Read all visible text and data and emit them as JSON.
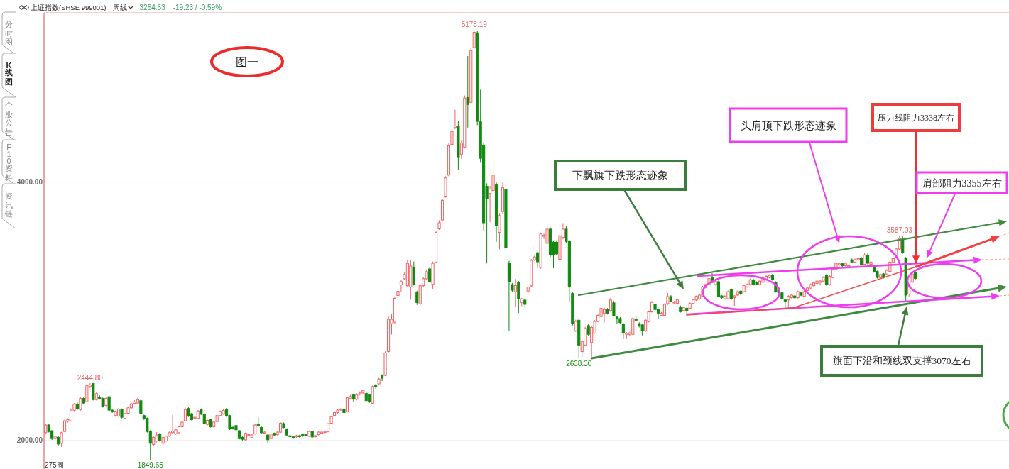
{
  "chart_data": {
    "type": "candlestick",
    "title": "上证指数(SHSE 999001)",
    "subtitle": "周线",
    "categories": [
      null,
      null,
      null,
      null,
      null,
      null,
      null,
      null,
      null,
      null,
      null,
      null,
      null,
      null,
      null,
      null,
      null,
      null,
      null,
      null,
      null,
      null,
      null,
      null,
      null,
      null,
      null,
      null,
      null,
      null,
      null,
      null,
      null,
      null,
      null,
      null,
      null,
      null,
      null,
      null,
      null,
      null,
      null,
      null,
      null,
      null,
      null,
      null,
      null,
      null,
      null,
      null,
      null,
      null,
      null,
      null,
      null,
      null,
      null,
      null,
      null,
      null,
      null,
      null,
      null,
      null,
      null,
      null,
      null,
      null,
      null,
      null,
      null,
      null,
      null,
      null,
      null,
      null,
      null,
      null,
      null,
      null,
      null,
      null,
      null,
      null,
      null,
      null,
      null,
      null,
      null,
      null,
      null,
      null,
      null,
      null,
      null,
      null,
      null,
      null,
      null,
      null,
      null,
      null,
      null,
      null,
      null,
      null,
      null,
      null,
      null,
      null,
      null,
      null,
      null,
      null,
      null,
      null,
      null,
      null,
      null,
      null,
      null,
      null,
      null,
      null,
      null,
      null,
      null,
      null,
      null,
      null,
      null,
      null,
      null,
      null,
      null,
      null,
      null,
      null,
      null,
      null,
      null,
      null,
      null,
      null,
      null,
      null,
      null,
      null,
      null,
      null,
      null,
      null,
      null,
      null,
      null,
      null,
      null,
      null,
      null,
      null,
      null,
      null,
      null,
      null,
      null,
      null,
      null,
      null,
      null,
      null,
      null,
      null,
      null,
      null,
      null,
      null,
      null,
      null,
      null,
      null,
      null,
      null,
      null,
      null,
      null,
      null,
      null,
      null,
      null,
      null,
      null,
      null,
      null,
      null,
      null,
      null,
      null,
      null,
      null,
      null,
      null,
      null,
      null,
      null,
      null,
      null,
      null,
      null,
      null,
      null,
      null,
      null,
      null,
      null,
      null,
      null,
      null,
      null,
      null,
      null,
      null,
      null,
      null,
      null,
      null,
      null,
      null,
      null,
      null,
      null,
      null,
      null,
      null,
      null,
      null,
      null,
      null,
      null,
      null,
      null,
      null,
      null,
      null,
      null,
      null,
      null,
      null,
      null,
      null,
      null,
      null,
      null,
      null,
      null,
      null,
      null,
      null,
      null,
      null,
      null,
      null,
      null,
      null,
      null,
      null,
      null,
      null,
      null,
      null,
      null,
      null,
      null,
      null,
      null,
      null,
      null,
      null,
      null,
      null,
      null,
      null,
      null,
      null,
      null,
      null,
      null,
      null,
      null,
      null,
      null,
      null,
      null,
      null,
      null,
      null,
      null,
      null,
      null,
      null,
      null,
      null,
      null
    ],
    "ohlc": [
      [
        2061,
        2130,
        2050,
        2120
      ],
      [
        2120,
        2128,
        2062,
        2070
      ],
      [
        2076,
        2080,
        2005,
        2015
      ],
      [
        2015,
        2040,
        2008,
        2034
      ],
      [
        2025,
        2035,
        1960,
        1973
      ],
      [
        1979,
        2068,
        1951,
        2061
      ],
      [
        2070,
        2160,
        2063,
        2153
      ],
      [
        2149,
        2172,
        2140,
        2162
      ],
      [
        2153,
        2240,
        2148,
        2235
      ],
      [
        2235,
        2290,
        2228,
        2281
      ],
      [
        2281,
        2295,
        2238,
        2244
      ],
      [
        2240,
        2335,
        2232,
        2326
      ],
      [
        2326,
        2340,
        2282,
        2290
      ],
      [
        2299,
        2432,
        2292,
        2427
      ],
      [
        2418,
        2444.8,
        2405,
        2430
      ],
      [
        2442,
        2443,
        2310,
        2317
      ],
      [
        2317,
        2372,
        2310,
        2363
      ],
      [
        2336,
        2350,
        2318,
        2325
      ],
      [
        2326,
        2332,
        2255,
        2262
      ],
      [
        2272,
        2334,
        2265,
        2326
      ],
      [
        2339,
        2345,
        2228,
        2235
      ],
      [
        2235,
        2240,
        2215,
        2226
      ],
      [
        2193,
        2232,
        2185,
        2226
      ],
      [
        2189,
        2250,
        2182,
        2244
      ],
      [
        2240,
        2248,
        2172,
        2180
      ],
      [
        2171,
        2215,
        2163,
        2207
      ],
      [
        2211,
        2260,
        2205,
        2253
      ],
      [
        2253,
        2292,
        2246,
        2284
      ],
      [
        2288,
        2312,
        2280,
        2299
      ],
      [
        2290,
        2330,
        2284,
        2317
      ],
      [
        2308,
        2320,
        2205,
        2211
      ],
      [
        2193,
        2200,
        2160,
        2167
      ],
      [
        2171,
        2178,
        2062,
        2070
      ],
      [
        2070,
        2080,
        1849.65,
        1979
      ],
      [
        1970,
        2035,
        1955,
        2025
      ],
      [
        1997,
        2065,
        1985,
        2043
      ],
      [
        2046,
        2060,
        1990,
        1997
      ],
      [
        1979,
        2030,
        1968,
        2025
      ],
      [
        1997,
        2040,
        1990,
        2034
      ],
      [
        2034,
        2070,
        2028,
        2061
      ],
      [
        2061,
        2198,
        2055,
        2074
      ],
      [
        2052,
        2090,
        2045,
        2083
      ],
      [
        2061,
        2115,
        2055,
        2107
      ],
      [
        2107,
        2150,
        2100,
        2143
      ],
      [
        2153,
        2255,
        2148,
        2240
      ],
      [
        2248,
        2258,
        2182,
        2189
      ],
      [
        2207,
        2215,
        2155,
        2162
      ],
      [
        2171,
        2188,
        2165,
        2180
      ],
      [
        2171,
        2236,
        2165,
        2229
      ],
      [
        2240,
        2248,
        2198,
        2204
      ],
      [
        2204,
        2210,
        2128,
        2134
      ],
      [
        2125,
        2162,
        2118,
        2156
      ],
      [
        2162,
        2168,
        2100,
        2107
      ],
      [
        2107,
        2150,
        2100,
        2143
      ],
      [
        2147,
        2200,
        2140,
        2193
      ],
      [
        2193,
        2232,
        2186,
        2226
      ],
      [
        2207,
        2245,
        2200,
        2233
      ],
      [
        2244,
        2252,
        2182,
        2189
      ],
      [
        2193,
        2198,
        2082,
        2089
      ],
      [
        2101,
        2110,
        2085,
        2094
      ],
      [
        2116,
        2122,
        2075,
        2083
      ],
      [
        2076,
        2082,
        2008,
        2015
      ],
      [
        2025,
        2032,
        2000,
        2010
      ],
      [
        2006,
        2062,
        1998,
        2056
      ],
      [
        2039,
        2055,
        2032,
        2046
      ],
      [
        2025,
        2050,
        2018,
        2043
      ],
      [
        2052,
        2128,
        2045,
        2120
      ],
      [
        2125,
        2180,
        2108,
        2116
      ],
      [
        2101,
        2108,
        2055,
        2061
      ],
      [
        2057,
        2072,
        2050,
        2065
      ],
      [
        2043,
        2050,
        1979,
        2006
      ],
      [
        2015,
        2058,
        2008,
        2052
      ],
      [
        2056,
        2062,
        2035,
        2043
      ],
      [
        2046,
        2072,
        2040,
        2065
      ],
      [
        2065,
        2142,
        2058,
        2134
      ],
      [
        2131,
        2140,
        2095,
        2101
      ],
      [
        2089,
        2095,
        2036,
        2043
      ],
      [
        2037,
        2045,
        2020,
        2030
      ],
      [
        2028,
        2035,
        2012,
        2021
      ],
      [
        2030,
        2045,
        2022,
        2037
      ],
      [
        2037,
        2045,
        2022,
        2030
      ],
      [
        2046,
        2052,
        2030,
        2039
      ],
      [
        2046,
        2054,
        2032,
        2039
      ],
      [
        2034,
        2078,
        2028,
        2070
      ],
      [
        2070,
        2076,
        2020,
        2028
      ],
      [
        2030,
        2044,
        2024,
        2037
      ],
      [
        2046,
        2070,
        2040,
        2065
      ],
      [
        2057,
        2072,
        2050,
        2065
      ],
      [
        2063,
        2076,
        2057,
        2070
      ],
      [
        2070,
        2135,
        2064,
        2129
      ],
      [
        2134,
        2192,
        2128,
        2185
      ],
      [
        2193,
        2226,
        2186,
        2217
      ],
      [
        2217,
        2242,
        2210,
        2235
      ],
      [
        2237,
        2250,
        2230,
        2244
      ],
      [
        2244,
        2252,
        2189,
        2217
      ],
      [
        2223,
        2340,
        2215,
        2331
      ],
      [
        2328,
        2352,
        2318,
        2340
      ],
      [
        2353,
        2362,
        2300,
        2320
      ],
      [
        2320,
        2365,
        2310,
        2353
      ],
      [
        2360,
        2380,
        2350,
        2368
      ],
      [
        2368,
        2392,
        2360,
        2385
      ],
      [
        2364,
        2372,
        2300,
        2309
      ],
      [
        2353,
        2360,
        2290,
        2299
      ],
      [
        2288,
        2425,
        2280,
        2418
      ],
      [
        2429,
        2440,
        2400,
        2418
      ],
      [
        2439,
        2485,
        2432,
        2476
      ],
      [
        2504,
        2512,
        2460,
        2483
      ],
      [
        2504,
        2690,
        2498,
        2678
      ],
      [
        2689,
        2960,
        2680,
        2938
      ],
      [
        2905,
        2980,
        2820,
        2938
      ],
      [
        2916,
        3110,
        2905,
        3100
      ],
      [
        3122,
        3170,
        3100,
        3155
      ],
      [
        3204,
        3240,
        3150,
        3230
      ],
      [
        3252,
        3300,
        3245,
        3285
      ],
      [
        3198,
        3400,
        3190,
        3371
      ],
      [
        3187,
        3400,
        3089,
        3350
      ],
      [
        3339,
        3385,
        3200,
        3209
      ],
      [
        3144,
        3160,
        3050,
        3068
      ],
      [
        3057,
        3210,
        3045,
        3198
      ],
      [
        3198,
        3262,
        3190,
        3252
      ],
      [
        3252,
        3320,
        3245,
        3306
      ],
      [
        3328,
        3340,
        3222,
        3230
      ],
      [
        3209,
        3385,
        3170,
        3371
      ],
      [
        3382,
        3620,
        3375,
        3610
      ],
      [
        3638,
        3705,
        3630,
        3685
      ],
      [
        3707,
        3870,
        3700,
        3859
      ],
      [
        3891,
        4045,
        3880,
        4032
      ],
      [
        4054,
        4300,
        4045,
        4281
      ],
      [
        4292,
        4400,
        4270,
        4390
      ],
      [
        4422,
        4560,
        4410,
        4433
      ],
      [
        4433,
        4470,
        4097,
        4195
      ],
      [
        4216,
        4320,
        4180,
        4303
      ],
      [
        4271,
        4670,
        4260,
        4650
      ],
      [
        4654,
        4975,
        4422,
        4600
      ],
      [
        4617,
        5040,
        4600,
        5018
      ],
      [
        5040,
        5178.19,
        5020,
        5159
      ],
      [
        5155,
        5170,
        4440,
        4470
      ],
      [
        4466,
        4715,
        4150,
        4184
      ],
      [
        4281,
        4300,
        3620,
        3685
      ],
      [
        3967,
        3990,
        3371,
        3870
      ],
      [
        3913,
        3970,
        3690,
        3945
      ],
      [
        3935,
        4173,
        3920,
        4054
      ],
      [
        3978,
        4000,
        3538,
        3664
      ],
      [
        3610,
        3760,
        3480,
        3740
      ],
      [
        3772,
        4000,
        3750,
        3956
      ],
      [
        3941,
        3990,
        3480,
        3495
      ],
      [
        3371,
        3390,
        2851,
        3230
      ],
      [
        3206,
        3220,
        3150,
        3164
      ],
      [
        3151,
        3250,
        3030,
        3200
      ],
      [
        3224,
        3235,
        2986,
        3096
      ],
      [
        3069,
        3105,
        3040,
        3096
      ],
      [
        3087,
        3100,
        3032,
        3054
      ],
      [
        3157,
        3195,
        3140,
        3188
      ],
      [
        3197,
        3405,
        3190,
        3394
      ],
      [
        3398,
        3430,
        3390,
        3420
      ],
      [
        3453,
        3460,
        3334,
        3383
      ],
      [
        3340,
        3610,
        3330,
        3599
      ],
      [
        3581,
        3600,
        3560,
        3590
      ],
      [
        3526,
        3676,
        3515,
        3636
      ],
      [
        3636,
        3650,
        3420,
        3438
      ],
      [
        3535,
        3545,
        3334,
        3435
      ],
      [
        3535,
        3550,
        3435,
        3444
      ],
      [
        3402,
        3595,
        3390,
        3585
      ],
      [
        3572,
        3682,
        3560,
        3636
      ],
      [
        3636,
        3660,
        3530,
        3541
      ],
      [
        3541,
        3550,
        3069,
        3188
      ],
      [
        3138,
        3150,
        2890,
        2904
      ],
      [
        2849,
        2935,
        2840,
        2922
      ],
      [
        2931,
        2945,
        2638.3,
        2739
      ],
      [
        2688,
        2780,
        2645,
        2767
      ],
      [
        2739,
        2880,
        2730,
        2867
      ],
      [
        2889,
        2900,
        2810,
        2822
      ],
      [
        2758,
        2885,
        2648,
        2876
      ],
      [
        2831,
        2932,
        2825,
        2922
      ],
      [
        2922,
        2980,
        2915,
        2968
      ],
      [
        2959,
        3035,
        2950,
        3023
      ],
      [
        2986,
        3030,
        2913,
        3014
      ],
      [
        3014,
        3025,
        2975,
        2986
      ],
      [
        3005,
        3105,
        2995,
        3087
      ],
      [
        3065,
        3080,
        2960,
        2968
      ],
      [
        2955,
        2965,
        2904,
        2941
      ],
      [
        2944,
        2955,
        2905,
        2913
      ],
      [
        2900,
        2910,
        2785,
        2831
      ],
      [
        2822,
        2840,
        2785,
        2831
      ],
      [
        2822,
        2842,
        2810,
        2833
      ],
      [
        2822,
        2955,
        2815,
        2944
      ],
      [
        2941,
        2960,
        2920,
        2931
      ],
      [
        2904,
        2915,
        2875,
        2886
      ],
      [
        2895,
        2905,
        2813,
        2849
      ],
      [
        2849,
        2940,
        2840,
        2931
      ],
      [
        2922,
        3005,
        2915,
        2996
      ],
      [
        2996,
        3080,
        2990,
        3069
      ],
      [
        3054,
        3065,
        3005,
        3014
      ],
      [
        3014,
        3022,
        2941,
        2986
      ],
      [
        2968,
        2995,
        2960,
        2986
      ],
      [
        2968,
        3062,
        2960,
        3054
      ],
      [
        3060,
        3142,
        3050,
        3114
      ],
      [
        3114,
        3125,
        3070,
        3078
      ],
      [
        3065,
        3080,
        3060,
        3072
      ],
      [
        3061,
        3095,
        3050,
        3088
      ],
      [
        3033,
        3045,
        2990,
        2997
      ],
      [
        3006,
        3035,
        2998,
        3028
      ],
      [
        3024,
        3030,
        2965,
        3006
      ],
      [
        3024,
        3068,
        3018,
        3061
      ],
      [
        3061,
        3095,
        3055,
        3088
      ],
      [
        3088,
        3122,
        3080,
        3116
      ],
      [
        3097,
        3132,
        3090,
        3125
      ],
      [
        3116,
        3196,
        3110,
        3189
      ],
      [
        3185,
        3214,
        3178,
        3207
      ],
      [
        3207,
        3260,
        3200,
        3253
      ],
      [
        3262,
        3295,
        3218,
        3225
      ],
      [
        3207,
        3242,
        3200,
        3234
      ],
      [
        3229,
        3238,
        3108,
        3116
      ],
      [
        3119,
        3126,
        3098,
        3106
      ],
      [
        3097,
        3124,
        3090,
        3116
      ],
      [
        3097,
        3160,
        3090,
        3152
      ],
      [
        3170,
        3178,
        3088,
        3097
      ],
      [
        3106,
        3126,
        3042,
        3119
      ],
      [
        3125,
        3160,
        3118,
        3152
      ],
      [
        3156,
        3164,
        3126,
        3134
      ],
      [
        3152,
        3206,
        3145,
        3198
      ],
      [
        3189,
        3215,
        3182,
        3207
      ],
      [
        3207,
        3252,
        3200,
        3244
      ],
      [
        3240,
        3250,
        3200,
        3207
      ],
      [
        3225,
        3232,
        3205,
        3211
      ],
      [
        3207,
        3242,
        3200,
        3234
      ],
      [
        3225,
        3260,
        3218,
        3253
      ],
      [
        3244,
        3278,
        3238,
        3271
      ],
      [
        3262,
        3285,
        3255,
        3277
      ],
      [
        3277,
        3289,
        3236,
        3244
      ],
      [
        3225,
        3232,
        3145,
        3152
      ],
      [
        3161,
        3168,
        3135,
        3143
      ],
      [
        3143,
        3150,
        3090,
        3097
      ],
      [
        3088,
        3095,
        3024,
        3079
      ],
      [
        3088,
        3124,
        3024,
        3116
      ],
      [
        3106,
        3132,
        3098,
        3125
      ],
      [
        3119,
        3126,
        3098,
        3105
      ],
      [
        3106,
        3160,
        3098,
        3152
      ],
      [
        3143,
        3150,
        3118,
        3125
      ],
      [
        3116,
        3160,
        3108,
        3152
      ],
      [
        3161,
        3188,
        3154,
        3180
      ],
      [
        3180,
        3214,
        3172,
        3207
      ],
      [
        3198,
        3228,
        3190,
        3220
      ],
      [
        3216,
        3242,
        3208,
        3234
      ],
      [
        3225,
        3242,
        3200,
        3234
      ],
      [
        3234,
        3270,
        3226,
        3262
      ],
      [
        3277,
        3288,
        3198,
        3207
      ],
      [
        3207,
        3280,
        3200,
        3271
      ],
      [
        3262,
        3334,
        3255,
        3326
      ],
      [
        3326,
        3380,
        3318,
        3372
      ],
      [
        3357,
        3378,
        3350,
        3368
      ],
      [
        3368,
        3375,
        3345,
        3353
      ],
      [
        3353,
        3380,
        3345,
        3372
      ],
      [
        3344,
        3362,
        3336,
        3353
      ],
      [
        3399,
        3408,
        3372,
        3381
      ],
      [
        3381,
        3408,
        3374,
        3399
      ],
      [
        3399,
        3418,
        3392,
        3408
      ],
      [
        3412,
        3420,
        3355,
        3363
      ],
      [
        3363,
        3454,
        3355,
        3436
      ],
      [
        3436,
        3450,
        3362,
        3372
      ],
      [
        3363,
        3390,
        3355,
        3381
      ],
      [
        3339,
        3348,
        3300,
        3308
      ],
      [
        3308,
        3315,
        3254,
        3262
      ],
      [
        3262,
        3292,
        3255,
        3284
      ],
      [
        3289,
        3296,
        3254,
        3262
      ],
      [
        3289,
        3325,
        3282,
        3317
      ],
      [
        3308,
        3390,
        3300,
        3381
      ],
      [
        3381,
        3416,
        3374,
        3408
      ],
      [
        3417,
        3490,
        3410,
        3482
      ],
      [
        3482,
        3587.03,
        3475,
        3564
      ],
      [
        3555,
        3580,
        3445,
        3454
      ],
      [
        3408,
        3420,
        3079,
        3125
      ],
      [
        3134,
        3215,
        3116,
        3207
      ],
      [
        3225,
        3298,
        3218,
        3289
      ],
      [
        3302,
        3310,
        3245,
        3254.53
      ],
      null,
      null,
      null,
      null,
      null,
      null,
      null,
      null,
      null,
      null,
      null,
      null,
      null,
      null,
      null,
      null,
      null,
      null,
      null,
      null,
      null,
      null,
      null,
      null,
      null,
      null,
      null,
      null,
      null
    ],
    "colors": [
      "#f06262",
      "#0f8a0f",
      "#0f8a0f",
      "#f06262",
      "#0f8a0f",
      "#f06262",
      "#f06262",
      "#f06262",
      "#f06262",
      "#f06262",
      "#0f8a0f",
      "#f06262",
      "#0f8a0f",
      "#f06262",
      "#f06262",
      "#0f8a0f",
      "#f06262",
      "#0f8a0f",
      "#0f8a0f",
      "#f06262",
      "#0f8a0f",
      "#0f8a0f",
      "#f06262",
      "#f06262",
      "#0f8a0f",
      "#f06262",
      "#f06262",
      "#f06262",
      "#f06262",
      "#f06262",
      "#0f8a0f",
      "#0f8a0f",
      "#0f8a0f",
      "#0f8a0f",
      "#f06262",
      "#f06262",
      "#0f8a0f",
      "#f06262",
      "#f06262",
      "#f06262",
      "#f06262",
      "#f06262",
      "#f06262",
      "#f06262",
      "#f06262",
      "#0f8a0f",
      "#0f8a0f",
      "#f06262",
      "#f06262",
      "#0f8a0f",
      "#0f8a0f",
      "#f06262",
      "#0f8a0f",
      "#f06262",
      "#f06262",
      "#f06262",
      "#f06262",
      "#0f8a0f",
      "#0f8a0f",
      "#0f8a0f",
      "#0f8a0f",
      "#0f8a0f",
      "#0f8a0f",
      "#f06262",
      "#f06262",
      "#f06262",
      "#f06262",
      "#0f8a0f",
      "#0f8a0f",
      "#f06262",
      "#0f8a0f",
      "#f06262",
      "#0f8a0f",
      "#f06262",
      "#f06262",
      "#0f8a0f",
      "#0f8a0f",
      "#0f8a0f",
      "#0f8a0f",
      "#f06262",
      "#0f8a0f",
      "#0f8a0f",
      "#0f8a0f",
      "#f06262",
      "#0f8a0f",
      "#f06262",
      "#f06262",
      "#f06262",
      "#f06262",
      "#f06262",
      "#f06262",
      "#f06262",
      "#f06262",
      "#f06262",
      "#0f8a0f",
      "#f06262",
      "#f06262",
      "#0f8a0f",
      "#f06262",
      "#f06262",
      "#f06262",
      "#0f8a0f",
      "#0f8a0f",
      "#f06262",
      "#0f8a0f",
      "#f06262",
      "#0f8a0f",
      "#f06262",
      "#f06262",
      "#f06262",
      "#f06262",
      "#f06262",
      "#f06262",
      "#f06262",
      "#f06262",
      "#f06262",
      "#0f8a0f",
      "#0f8a0f",
      "#f06262",
      "#f06262",
      "#f06262",
      "#0f8a0f",
      "#f06262",
      "#f06262",
      "#f06262",
      "#f06262",
      "#f06262",
      "#f06262",
      "#f06262",
      "#f06262",
      "#0f8a0f",
      "#f06262",
      "#f06262",
      "#0f8a0f",
      "#f06262",
      "#f06262",
      "#0f8a0f",
      "#0f8a0f",
      "#0f8a0f",
      "#0f8a0f",
      "#f06262",
      "#f06262",
      "#0f8a0f",
      "#f06262",
      "#f06262",
      "#0f8a0f",
      "#0f8a0f",
      "#0f8a0f",
      "#f06262",
      "#0f8a0f",
      "#f06262",
      "#0f8a0f",
      "#f06262",
      "#f06262",
      "#f06262",
      "#0f8a0f",
      "#f06262",
      "#f06262",
      "#f06262",
      "#0f8a0f",
      "#0f8a0f",
      "#0f8a0f",
      "#f06262",
      "#f06262",
      "#0f8a0f",
      "#0f8a0f",
      "#0f8a0f",
      "#f06262",
      "#0f8a0f",
      "#f06262",
      "#f06262",
      "#0f8a0f",
      "#f06262",
      "#f06262",
      "#f06262",
      "#f06262",
      "#f06262",
      "#0f8a0f",
      "#f06262",
      "#0f8a0f",
      "#0f8a0f",
      "#0f8a0f",
      "#0f8a0f",
      "#f06262",
      "#f06262",
      "#f06262",
      "#0f8a0f",
      "#0f8a0f",
      "#0f8a0f",
      "#f06262",
      "#f06262",
      "#f06262",
      "#0f8a0f",
      "#0f8a0f",
      "#f06262",
      "#f06262",
      "#f06262",
      "#0f8a0f",
      "#f06262",
      "#f06262",
      "#0f8a0f",
      "#f06262",
      "#0f8a0f",
      "#f06262",
      "#f06262",
      "#f06262",
      "#f06262",
      "#f06262",
      "#f06262",
      "#f06262",
      "#0f8a0f",
      "#f06262",
      "#0f8a0f",
      "#0f8a0f",
      "#f06262",
      "#f06262",
      "#0f8a0f",
      "#f06262",
      "#f06262",
      "#0f8a0f",
      "#f06262",
      "#f06262",
      "#f06262",
      "#0f8a0f",
      "#0f8a0f",
      "#f06262",
      "#f06262",
      "#f06262",
      "#f06262",
      "#0f8a0f",
      "#0f8a0f",
      "#0f8a0f",
      "#0f8a0f",
      "#0f8a0f",
      "#f06262",
      "#f06262",
      "#0f8a0f",
      "#f06262",
      "#0f8a0f",
      "#f06262",
      "#f06262",
      "#f06262",
      "#f06262",
      "#f06262",
      "#f06262",
      "#f06262",
      "#0f8a0f",
      "#f06262",
      "#f06262",
      "#f06262",
      "#f06262",
      "#0f8a0f",
      "#f06262",
      "#f06262",
      "#0f8a0f",
      "#f06262",
      "#f06262",
      "#0f8a0f",
      "#f06262",
      "#0f8a0f",
      "#f06262",
      "#0f8a0f",
      "#0f8a0f",
      "#f06262",
      "#0f8a0f",
      "#f06262",
      "#f06262",
      "#f06262",
      "#f06262",
      "#f06262",
      "#0f8a0f",
      "#0f8a0f",
      "#f06262",
      "#f06262",
      "#0f8a0f",
      null,
      null,
      null,
      null,
      null,
      null,
      null,
      null,
      null,
      null,
      null,
      null,
      null,
      null,
      null,
      null,
      null,
      null,
      null,
      null,
      null,
      null,
      null,
      null,
      null,
      null,
      null,
      null,
      null
    ],
    "ylim": [
      1780,
      5310
    ],
    "yticks": [
      {
        "value": 4000,
        "label": "4000.00"
      },
      {
        "value": 2000,
        "label": "2000.00"
      }
    ],
    "grid": "y",
    "tick_labels": "y",
    "annotations": [
      "3254.53",
      "-19.23 / -0.59%",
      "分时图",
      "K线图",
      "个股公告",
      "F10资料",
      "资讯链",
      "275周",
      "图一",
      "下飘旗下跌形态迹象",
      "头肩顶下跌形态迹象",
      "压力线阻力3338左右",
      "肩部阻力3355左右",
      "旗面下沿和颈线双支撑3070左右",
      "5178.19",
      "2444.80",
      "1849.65",
      "2638.30",
      "3587.03"
    ]
  }
}
